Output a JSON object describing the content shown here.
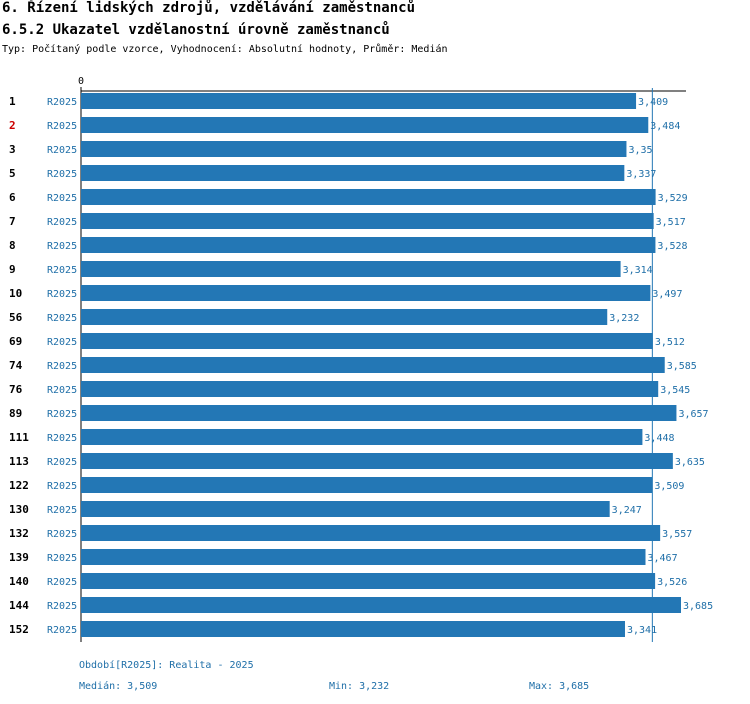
{
  "header": {
    "title": "6. Řízení lidských zdrojů, vzdělávání zaměstnanců",
    "subtitle": "6.5.2 Ukazatel vzdělanostní úrovně zaměstnanců",
    "type_line": "Typ: Počítaný podle vzorce, Vyhodnocení: Absolutní hodnoty, Průměr: Medián"
  },
  "chart_data": {
    "type": "bar",
    "orientation": "horizontal",
    "x_zero_label": "0",
    "xlim": [
      0,
      3.685
    ],
    "median_line": 3.509,
    "colors": {
      "bar": "#2377b5",
      "value_text": "#1f6fa8",
      "period_text": "#1f6fa8",
      "highlight_id": "#cc0000",
      "axis": "#000000"
    },
    "rows": [
      {
        "id": "1",
        "period": "R2025",
        "value": 3.409,
        "label": "3,409",
        "highlight": false
      },
      {
        "id": "2",
        "period": "R2025",
        "value": 3.484,
        "label": "3,484",
        "highlight": true
      },
      {
        "id": "3",
        "period": "R2025",
        "value": 3.35,
        "label": "3,35",
        "highlight": false
      },
      {
        "id": "5",
        "period": "R2025",
        "value": 3.337,
        "label": "3,337",
        "highlight": false
      },
      {
        "id": "6",
        "period": "R2025",
        "value": 3.529,
        "label": "3,529",
        "highlight": false
      },
      {
        "id": "7",
        "period": "R2025",
        "value": 3.517,
        "label": "3,517",
        "highlight": false
      },
      {
        "id": "8",
        "period": "R2025",
        "value": 3.528,
        "label": "3,528",
        "highlight": false
      },
      {
        "id": "9",
        "period": "R2025",
        "value": 3.314,
        "label": "3,314",
        "highlight": false
      },
      {
        "id": "10",
        "period": "R2025",
        "value": 3.497,
        "label": "3,497",
        "highlight": false
      },
      {
        "id": "56",
        "period": "R2025",
        "value": 3.232,
        "label": "3,232",
        "highlight": false
      },
      {
        "id": "69",
        "period": "R2025",
        "value": 3.512,
        "label": "3,512",
        "highlight": false
      },
      {
        "id": "74",
        "period": "R2025",
        "value": 3.585,
        "label": "3,585",
        "highlight": false
      },
      {
        "id": "76",
        "period": "R2025",
        "value": 3.545,
        "label": "3,545",
        "highlight": false
      },
      {
        "id": "89",
        "period": "R2025",
        "value": 3.657,
        "label": "3,657",
        "highlight": false
      },
      {
        "id": "111",
        "period": "R2025",
        "value": 3.448,
        "label": "3,448",
        "highlight": false
      },
      {
        "id": "113",
        "period": "R2025",
        "value": 3.635,
        "label": "3,635",
        "highlight": false
      },
      {
        "id": "122",
        "period": "R2025",
        "value": 3.509,
        "label": "3,509",
        "highlight": false
      },
      {
        "id": "130",
        "period": "R2025",
        "value": 3.247,
        "label": "3,247",
        "highlight": false
      },
      {
        "id": "132",
        "period": "R2025",
        "value": 3.557,
        "label": "3,557",
        "highlight": false
      },
      {
        "id": "139",
        "period": "R2025",
        "value": 3.467,
        "label": "3,467",
        "highlight": false
      },
      {
        "id": "140",
        "period": "R2025",
        "value": 3.526,
        "label": "3,526",
        "highlight": false
      },
      {
        "id": "144",
        "period": "R2025",
        "value": 3.685,
        "label": "3,685",
        "highlight": false
      },
      {
        "id": "152",
        "period": "R2025",
        "value": 3.341,
        "label": "3,341",
        "highlight": false
      }
    ]
  },
  "footer": {
    "period_legend": "Období[R2025]: Realita - 2025",
    "median": "Medián: 3,509",
    "min": "Min: 3,232",
    "max": "Max: 3,685"
  }
}
